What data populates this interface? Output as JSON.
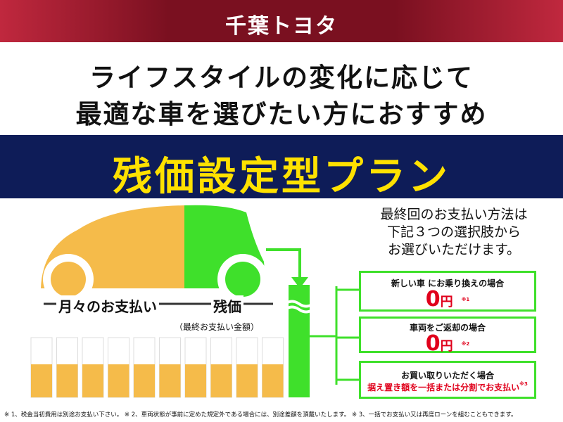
{
  "brand": "千葉トヨタ",
  "headline": {
    "line1": "ライフスタイルの変化に応じて",
    "line2": "最適な車を選びたい方におすすめ"
  },
  "plan_title": "残価設定型プラン",
  "diagram": {
    "monthly_label": "月々のお支払い",
    "residual_label": "残価",
    "residual_sub": "（最終お支払い金額）"
  },
  "options_intro": [
    "最終回のお支払い方法は",
    "下記３つの選択肢から",
    "お選びいただけます。"
  ],
  "options": [
    {
      "label": "新しい車 にお乗り換えの場合",
      "amount": "0",
      "unit": "円",
      "note": "※1"
    },
    {
      "label": "車両をご返却の場合",
      "amount": "0",
      "unit": "円",
      "note": "※2"
    },
    {
      "label": "お買い取りいただく場合",
      "detail": "据え置き額を一括または分割でお支払い",
      "note": "※3"
    }
  ],
  "footnotes": "※ 1、税金当初費用は別途お支払い下さい。 ※ 2、車両状態が事前に定めた規定外である場合には、別途差額を頂戴いたします。 ※ 3、一括でお支払い又は再度ローンを組むこともできます。",
  "colors": {
    "banner": "#7a1020",
    "band": "#0e1c58",
    "title": "#ffe100",
    "orange": "#f5bb4a",
    "green": "#3fe02b",
    "red": "#e0001b"
  }
}
